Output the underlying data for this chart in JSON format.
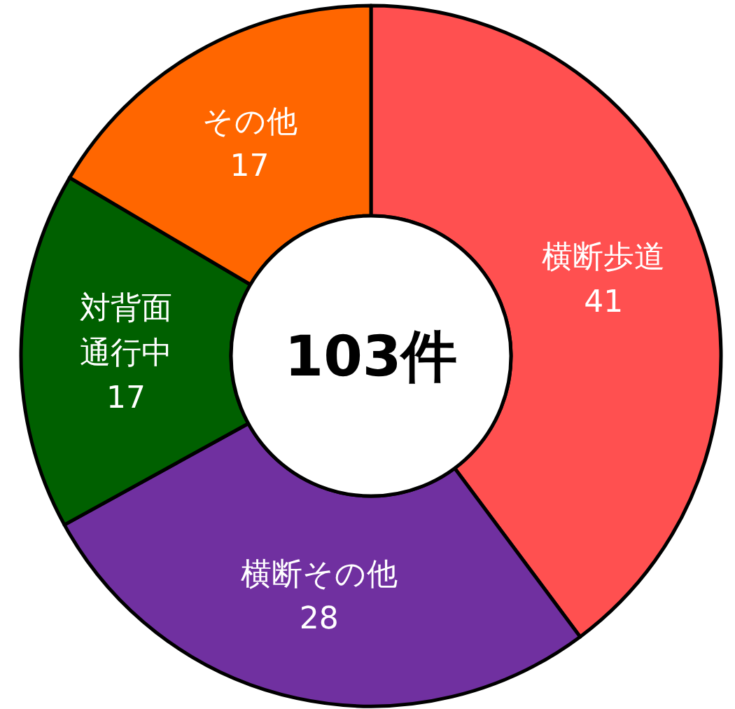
{
  "chart_data": {
    "type": "donut",
    "categories": [
      "横断歩道",
      "横断その他",
      "対背面通行中",
      "その他"
    ],
    "values": [
      41,
      28,
      17,
      17
    ],
    "colors": [
      "#ff5050",
      "#7030a0",
      "#006000",
      "#ff6600"
    ],
    "data_labels": true,
    "annotations": [
      "103件"
    ]
  }
}
